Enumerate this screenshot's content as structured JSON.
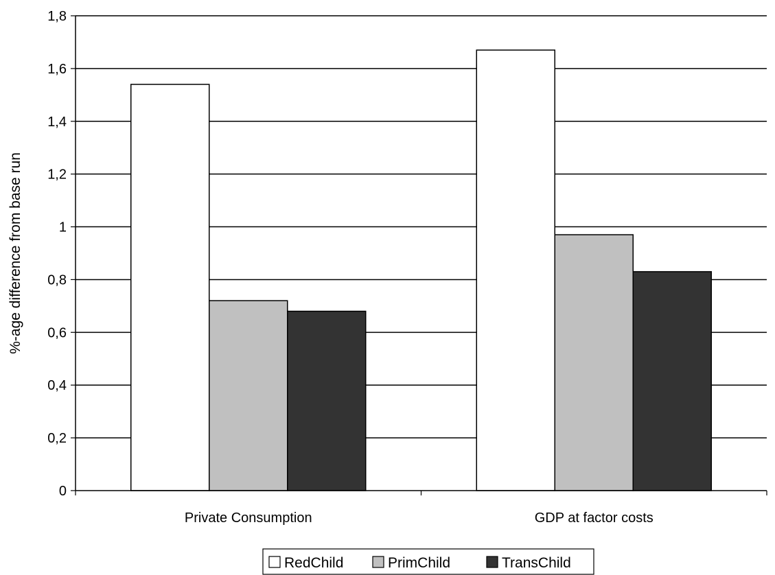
{
  "chart_data": {
    "type": "bar",
    "title": "",
    "xlabel": "",
    "ylabel": "%-age difference from base run",
    "categories": [
      "Private Consumption",
      "GDP at factor costs"
    ],
    "series": [
      {
        "name": "RedChild",
        "values": [
          1.54,
          1.67
        ],
        "color": "#ffffff"
      },
      {
        "name": "PrimChild",
        "values": [
          0.72,
          0.97
        ],
        "color": "#c0c0c0"
      },
      {
        "name": "TransChild",
        "values": [
          0.68,
          0.83
        ],
        "color": "#333333"
      }
    ],
    "ylim": [
      0,
      1.8
    ],
    "yticks": [
      0,
      0.2,
      0.4,
      0.6,
      0.8,
      1,
      1.2,
      1.4,
      1.6,
      1.8
    ],
    "ytick_labels": [
      "0",
      "0,2",
      "0,4",
      "0,6",
      "0,8",
      "1",
      "1,2",
      "1,4",
      "1,6",
      "1,8"
    ],
    "grid": true,
    "legend_position": "bottom"
  }
}
